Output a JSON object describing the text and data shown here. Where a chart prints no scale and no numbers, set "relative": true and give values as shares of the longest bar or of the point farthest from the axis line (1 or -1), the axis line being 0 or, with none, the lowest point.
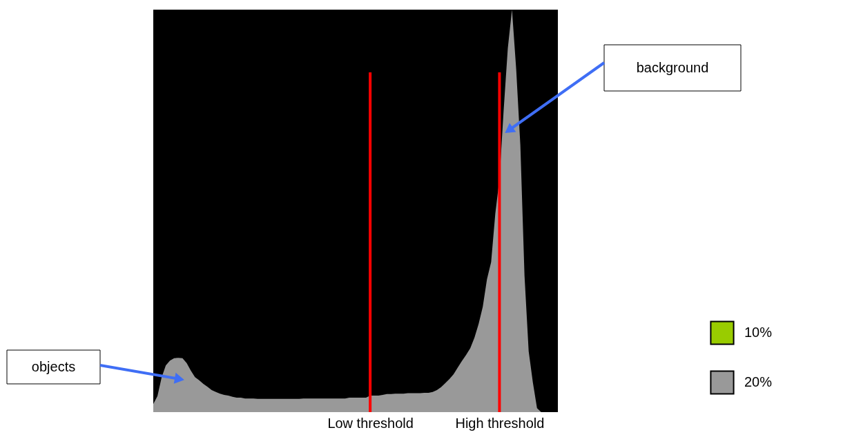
{
  "chart_data": {
    "type": "area",
    "relative": true,
    "categories": [
      null,
      null,
      null,
      null,
      null,
      null,
      null,
      null,
      null,
      null,
      null,
      null,
      null,
      null,
      null,
      null,
      null,
      null,
      null,
      null,
      null,
      null,
      null,
      null,
      null,
      null,
      null,
      null,
      null,
      null,
      null,
      null,
      null,
      null,
      null,
      null,
      null,
      null,
      null,
      null,
      null,
      null,
      null,
      null,
      null,
      null,
      null,
      null,
      null,
      null,
      null,
      null,
      "Low threshold",
      null,
      null,
      null,
      null,
      null,
      null,
      null,
      null,
      null,
      null,
      null,
      null,
      null,
      null,
      null,
      null,
      null,
      null,
      null,
      null,
      null,
      null,
      null,
      null,
      null,
      null,
      null,
      null,
      null,
      null,
      "High threshold",
      null,
      null,
      null,
      null,
      null,
      null,
      null,
      null,
      null,
      null,
      null,
      null,
      null,
      null
    ],
    "series": [
      {
        "color": "#999999",
        "values": [
          0.02,
          0.04,
          0.086,
          0.116,
          0.128,
          0.134,
          0.135,
          0.134,
          0.122,
          0.103,
          0.087,
          0.079,
          0.07,
          0.063,
          0.055,
          0.05,
          0.046,
          0.043,
          0.041,
          0.038,
          0.036,
          0.036,
          0.034,
          0.034,
          0.034,
          0.033,
          0.033,
          0.033,
          0.033,
          0.033,
          0.033,
          0.033,
          0.033,
          0.033,
          0.033,
          0.033,
          0.034,
          0.034,
          0.034,
          0.034,
          0.034,
          0.034,
          0.034,
          0.034,
          0.034,
          0.034,
          0.034,
          0.036,
          0.036,
          0.036,
          0.036,
          0.036,
          0.041,
          null,
          null,
          null,
          null,
          null,
          null,
          null,
          null,
          null,
          null,
          null,
          null,
          null,
          null,
          null,
          null,
          null,
          null,
          null,
          null,
          null,
          null,
          null,
          null,
          null,
          null,
          null,
          null,
          null,
          null,
          null,
          null,
          null,
          null,
          null,
          null,
          null,
          null,
          null,
          null,
          null,
          null,
          null,
          null,
          null
        ]
      },
      {
        "name": "10%",
        "color": "#99cc00",
        "values": [
          null,
          null,
          null,
          null,
          null,
          null,
          null,
          null,
          null,
          null,
          null,
          null,
          null,
          null,
          null,
          null,
          null,
          null,
          null,
          null,
          null,
          null,
          null,
          null,
          null,
          null,
          null,
          null,
          null,
          null,
          null,
          null,
          null,
          null,
          null,
          null,
          null,
          null,
          null,
          null,
          null,
          null,
          null,
          null,
          null,
          null,
          null,
          null,
          null,
          null,
          null,
          null,
          null,
          null,
          null,
          null,
          null,
          null,
          null,
          null,
          null,
          null,
          null,
          null,
          null,
          null,
          null,
          null,
          null,
          null,
          null,
          null,
          null,
          null,
          null,
          null,
          null,
          null,
          null,
          null,
          null,
          null,
          null,
          null,
          null,
          null,
          null,
          null,
          null,
          null,
          null,
          null,
          null,
          null,
          null,
          null,
          null,
          null
        ]
      },
      {
        "name": "20%",
        "color": "#999999",
        "values": [
          null,
          null,
          null,
          null,
          null,
          null,
          null,
          null,
          null,
          null,
          null,
          null,
          null,
          null,
          null,
          null,
          null,
          null,
          null,
          null,
          null,
          null,
          null,
          null,
          null,
          null,
          null,
          null,
          null,
          null,
          null,
          null,
          null,
          null,
          null,
          null,
          null,
          null,
          null,
          null,
          null,
          null,
          null,
          null,
          null,
          null,
          null,
          null,
          null,
          null,
          null,
          null,
          0.041,
          0.041,
          0.041,
          0.043,
          0.045,
          0.045,
          0.046,
          0.046,
          0.046,
          0.047,
          0.047,
          0.047,
          0.047,
          0.048,
          0.048,
          0.05,
          0.055,
          0.062,
          0.072,
          0.082,
          0.094,
          0.111,
          0.127,
          0.142,
          0.159,
          0.185,
          0.219,
          0.262,
          0.33,
          0.373,
          0.493,
          0.579,
          0.75,
          0.904,
          1.0,
          0.853,
          0.664,
          0.339,
          0.151,
          0.074,
          0.01,
          0,
          0,
          0,
          0,
          0
        ]
      }
    ],
    "ref_lines": [
      {
        "axis": "x",
        "value": "Low threshold",
        "color": "#ff0000"
      },
      {
        "axis": "x",
        "value": "High threshold",
        "color": "#ff0000"
      }
    ],
    "annotations": [
      "objects",
      "background"
    ],
    "legend": "bottom right"
  }
}
